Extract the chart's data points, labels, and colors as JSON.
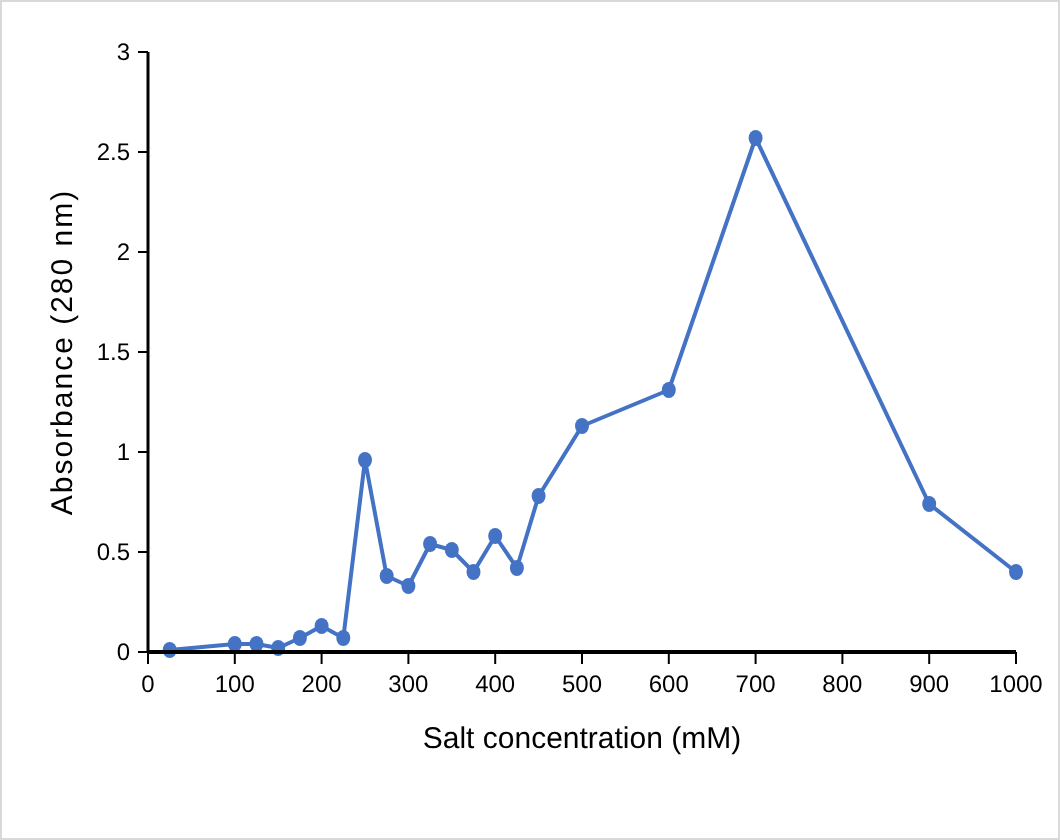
{
  "chart_data": {
    "type": "line",
    "xlabel": "Salt concentration (mM)",
    "ylabel": "Absorbance (280 nm)",
    "x": [
      25,
      100,
      125,
      150,
      175,
      200,
      225,
      250,
      275,
      300,
      325,
      350,
      375,
      400,
      425,
      450,
      500,
      600,
      700,
      900,
      1000
    ],
    "series": [
      {
        "color": "#4472c4",
        "values": [
          0.01,
          0.04,
          0.04,
          0.02,
          0.07,
          0.13,
          0.07,
          0.96,
          0.38,
          0.33,
          0.54,
          0.51,
          0.4,
          0.58,
          0.42,
          0.78,
          1.13,
          1.31,
          2.57,
          0.74,
          0.4
        ]
      }
    ],
    "xlim": [
      0,
      1000
    ],
    "xticks": [
      0,
      100,
      200,
      300,
      400,
      500,
      600,
      700,
      800,
      900,
      1000
    ],
    "ylim": [
      0,
      3
    ],
    "yticks": [
      0,
      0.5,
      1,
      1.5,
      2,
      2.5,
      3
    ],
    "marker": "circle",
    "line_style": "solid"
  }
}
